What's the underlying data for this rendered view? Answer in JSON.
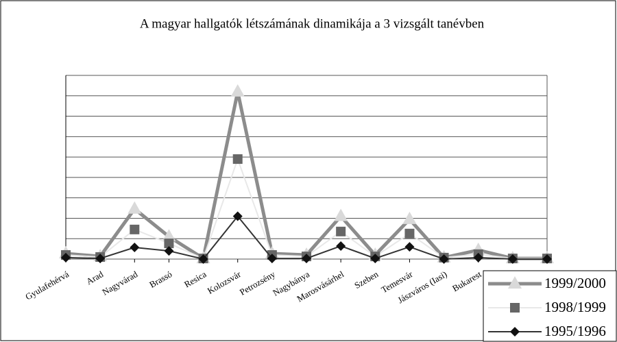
{
  "chart_data": {
    "type": "line",
    "title": "A magyar hallgatók létszámának dinamikája a 3 vizsgált tanévben",
    "categories": [
      "Gyulafehérvá",
      "Arad",
      "Nagyvárad",
      "Brassó",
      "Resica",
      "Kolozsvár",
      "Petrozsény",
      "Nagybánya",
      "Marosvásárhel",
      "Szeben",
      "Temesvár",
      "Jászváros (Iasi)",
      "Bukarest",
      null,
      null
    ],
    "series": [
      {
        "name": "1999/2000",
        "color": "#8c8c8c",
        "marker": "triangle",
        "marker_color": "#d9d9d9",
        "values": [
          0.27,
          0.13,
          2.46,
          1.1,
          0.03,
          8.2,
          0.27,
          0.2,
          2.1,
          0.2,
          1.95,
          0.07,
          0.44,
          0.03,
          0.03
        ]
      },
      {
        "name": "1998/1999",
        "color": "#e8e8e8",
        "marker": "square",
        "marker_color": "#666666",
        "values": [
          0.2,
          0.1,
          1.45,
          0.77,
          0.03,
          4.9,
          0.2,
          0.13,
          1.35,
          0.13,
          1.25,
          0.07,
          0.24,
          0.03,
          0.03
        ]
      },
      {
        "name": "1995/1996",
        "color": "#333333",
        "marker": "diamond",
        "marker_color": "#111111",
        "values": [
          0.07,
          0.03,
          0.57,
          0.4,
          0,
          2.1,
          0.03,
          0.03,
          0.64,
          0.03,
          0.6,
          0,
          0.07,
          0,
          0
        ]
      }
    ],
    "ylim": [
      0,
      9
    ],
    "yticks": [
      0,
      1,
      2,
      3,
      4,
      5,
      6,
      7,
      8,
      9
    ],
    "grid": true,
    "legend": "bottom-right"
  }
}
